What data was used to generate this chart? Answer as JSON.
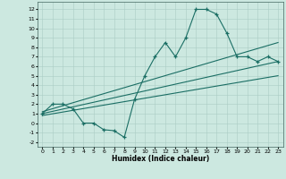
{
  "title": "",
  "xlabel": "Humidex (Indice chaleur)",
  "bg_color": "#cce8e0",
  "grid_color": "#aaccc4",
  "line_color": "#1a6e64",
  "xlim": [
    -0.5,
    23.5
  ],
  "ylim": [
    -2.5,
    12.8
  ],
  "xticks": [
    0,
    1,
    2,
    3,
    4,
    5,
    6,
    7,
    8,
    9,
    10,
    11,
    12,
    13,
    14,
    15,
    16,
    17,
    18,
    19,
    20,
    21,
    22,
    23
  ],
  "yticks": [
    -2,
    -1,
    0,
    1,
    2,
    3,
    4,
    5,
    6,
    7,
    8,
    9,
    10,
    11,
    12
  ],
  "curve_x": [
    0,
    1,
    2,
    3,
    4,
    5,
    6,
    7,
    8,
    9,
    10,
    11,
    12,
    13,
    14,
    15,
    16,
    17,
    18,
    19,
    20,
    21,
    22,
    23
  ],
  "curve_y": [
    1,
    2,
    2,
    1.5,
    0,
    0,
    -0.7,
    -0.8,
    -1.5,
    2.5,
    5,
    7,
    8.5,
    7,
    9,
    12,
    12,
    11.5,
    9.5,
    7,
    7,
    6.5,
    7,
    6.5
  ],
  "line2_x": [
    0,
    23
  ],
  "line2_y": [
    1.0,
    6.5
  ],
  "line3_x": [
    0,
    23
  ],
  "line3_y": [
    0.8,
    5.0
  ],
  "line4_x": [
    0,
    23
  ],
  "line4_y": [
    1.2,
    8.5
  ]
}
